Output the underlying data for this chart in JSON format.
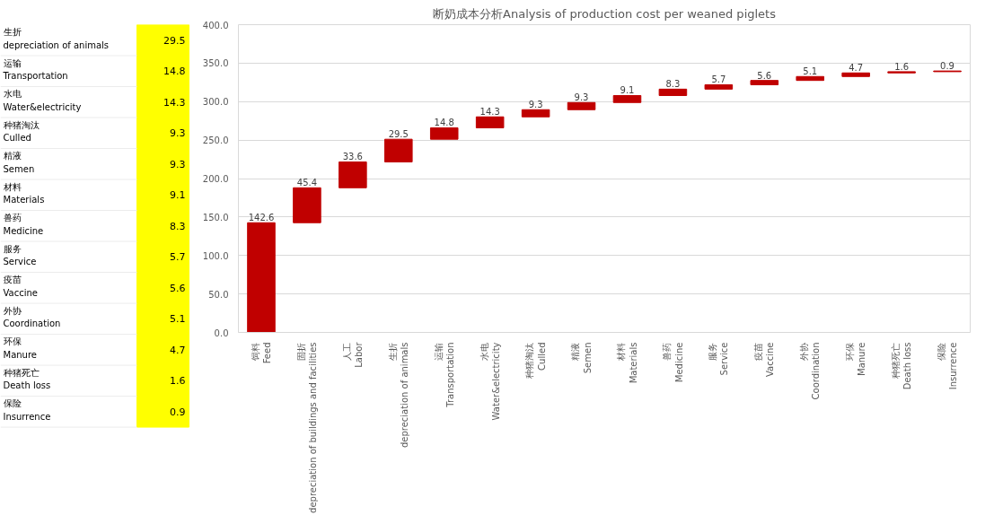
{
  "chart_data": {
    "type": "bar",
    "title": "断奶成本分析Analysis of production cost per weaned piglets",
    "categories": [
      "饲料\nFeed",
      "固折\ndepreciation of buildings and facilities",
      "人工\nLabor",
      "生折\ndepreciation of animals",
      "运输\nTransportation",
      "水电\nWater&electricity",
      "种猪淘汰\nCulled",
      "精液\nSemen",
      "材料\nMaterials",
      "兽药\nMedicine",
      "服务\nService",
      "疫苗\nVaccine",
      "外协\nCoordination",
      "环保\nManure",
      "种猪死亡\nDeath loss",
      "保险\nInsurrence"
    ],
    "values": [
      142.6,
      45.4,
      33.6,
      29.5,
      14.8,
      14.3,
      9.3,
      9.3,
      9.1,
      8.3,
      5.7,
      5.6,
      5.1,
      4.7,
      1.6,
      0.9
    ],
    "base": [
      0,
      142.6,
      188.0,
      221.6,
      251.1,
      265.9,
      280.2,
      289.5,
      298.8,
      307.9,
      316.2,
      321.9,
      327.5,
      332.6,
      337.3,
      338.9
    ],
    "color": "#c00000",
    "data_labels": true,
    "ylim": [
      0,
      400
    ],
    "yticks": [
      {
        "value": 0,
        "label": "0.0"
      },
      {
        "value": 50,
        "label": "50.0"
      },
      {
        "value": 100,
        "label": "100.0"
      },
      {
        "value": 150,
        "label": "150.0"
      },
      {
        "value": 200,
        "label": "200.0"
      },
      {
        "value": 250,
        "label": "250.0"
      },
      {
        "value": 300,
        "label": "300.0"
      },
      {
        "value": 350,
        "label": "350.0"
      },
      {
        "value": 400,
        "label": "400.0"
      }
    ],
    "grid": "y",
    "annotations": [
      "生折\ndepreciation of animals",
      "29.5",
      "运输\nTransportation",
      "14.8",
      "水电\nWater&electricity",
      "14.3",
      "种猪淘汰\nCulled",
      "9.3",
      "精液\nSemen",
      "9.3",
      "材料\nMaterials",
      "9.1",
      "兽药\nMedicine",
      "8.3",
      "服务\nService",
      "5.7",
      "疫苗\nVaccine",
      "5.6",
      "外协\nCoordination",
      "5.1",
      "环保\nManure",
      "4.7",
      "种猪死亡\nDeath loss",
      "1.6",
      "保险\nInsurrence",
      "0.9"
    ]
  }
}
